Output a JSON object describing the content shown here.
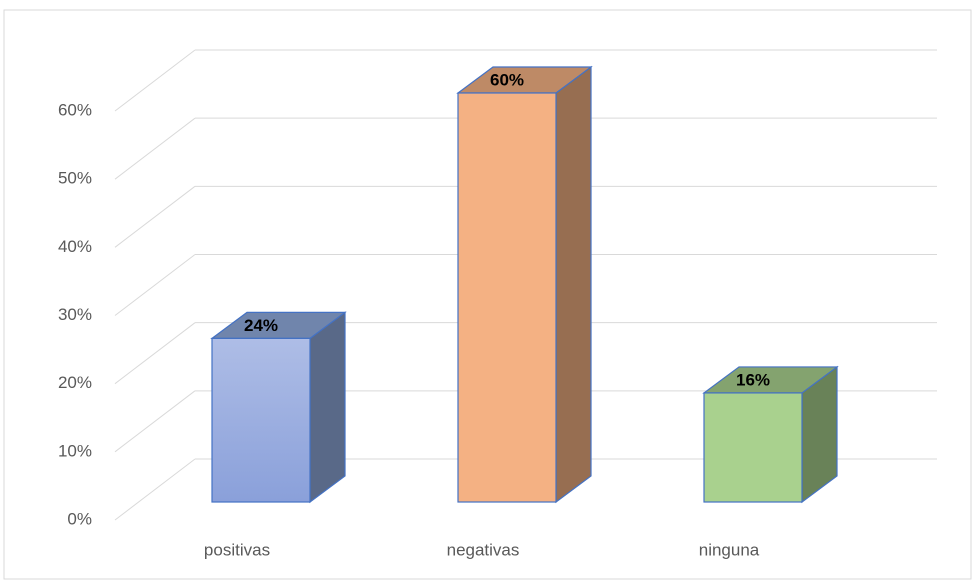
{
  "chart_data": {
    "type": "bar3d",
    "categories": [
      "positivas",
      "negativas",
      "ninguna"
    ],
    "values": [
      24,
      60,
      16
    ],
    "value_labels": [
      "24%",
      "60%",
      "16%"
    ],
    "colors": [
      "#8faadc",
      "#f4b183",
      "#a9d18e"
    ],
    "ylim": [
      0,
      60
    ],
    "yticks": [
      {
        "value": 0,
        "label": "0%"
      },
      {
        "value": 10,
        "label": "10%"
      },
      {
        "value": 20,
        "label": "20%"
      },
      {
        "value": 30,
        "label": "30%"
      },
      {
        "value": 40,
        "label": "40%"
      },
      {
        "value": 50,
        "label": "50%"
      },
      {
        "value": 60,
        "label": "60%"
      }
    ],
    "grid": true
  }
}
